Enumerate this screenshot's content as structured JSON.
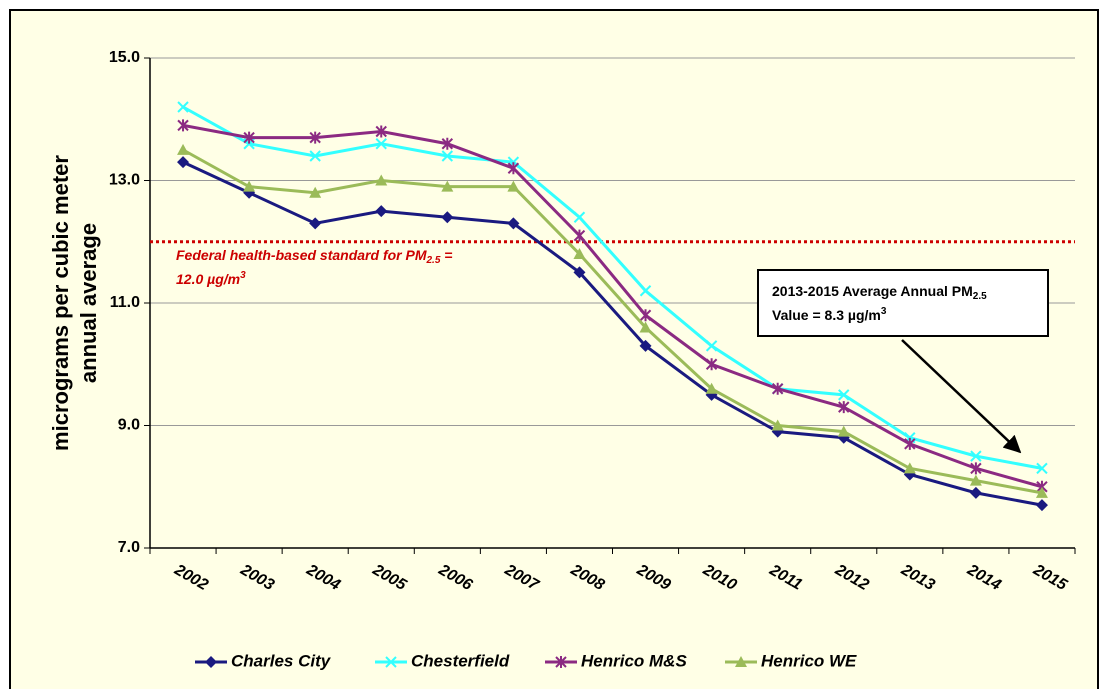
{
  "chart_data": {
    "type": "line",
    "y_label": [
      "micrograms per cubic meter",
      "annual average"
    ],
    "categories": [
      "2002",
      "2003",
      "2004",
      "2005",
      "2006",
      "2007",
      "2008",
      "2009",
      "2010",
      "2011",
      "2012",
      "2013",
      "2014",
      "2015"
    ],
    "series": [
      {
        "name": "Charles City",
        "color": "#1a1a80",
        "marker": "diamond",
        "values": [
          13.3,
          12.8,
          12.3,
          12.5,
          12.4,
          12.3,
          11.5,
          10.3,
          9.5,
          8.9,
          8.8,
          8.2,
          7.9,
          7.7
        ]
      },
      {
        "name": "Chesterfield",
        "color": "#33ffff",
        "marker": "x",
        "values": [
          14.2,
          13.6,
          13.4,
          13.6,
          13.4,
          13.3,
          12.4,
          11.2,
          10.3,
          9.6,
          9.5,
          8.8,
          8.5,
          8.3
        ]
      },
      {
        "name": "Henrico M&S",
        "color": "#8b2a82",
        "marker": "star",
        "values": [
          13.9,
          13.7,
          13.7,
          13.8,
          13.6,
          13.2,
          12.1,
          10.8,
          10.0,
          9.6,
          9.3,
          8.7,
          8.3,
          8.0
        ]
      },
      {
        "name": "Henrico WE",
        "color": "#9bbb59",
        "marker": "triangle",
        "values": [
          13.5,
          12.9,
          12.8,
          13.0,
          12.9,
          12.9,
          11.8,
          10.6,
          9.6,
          9.0,
          8.9,
          8.3,
          8.1,
          7.9
        ]
      }
    ],
    "ylim": [
      7,
      15
    ],
    "yticks": [
      {
        "value": 7,
        "label": "7.0"
      },
      {
        "value": 9,
        "label": "9.0"
      },
      {
        "value": 11,
        "label": "11.0"
      },
      {
        "value": 13,
        "label": "13.0"
      },
      {
        "value": 15,
        "label": "15.0"
      }
    ],
    "grid": true,
    "legend": "bottom",
    "standard": {
      "value": 12,
      "color": "#cc0000",
      "label_line1": "Federal health-based standard for PM",
      "label_sub": "2.5",
      "label_after": " =",
      "label_line2": "12.0 µg/m",
      "label_sup": "3"
    },
    "callout": {
      "line1": "2013-2015 Average Annual PM",
      "line1_sub": "2.5",
      "line2": "Value = 8.3 µg/m",
      "line2_sup": "3"
    }
  }
}
